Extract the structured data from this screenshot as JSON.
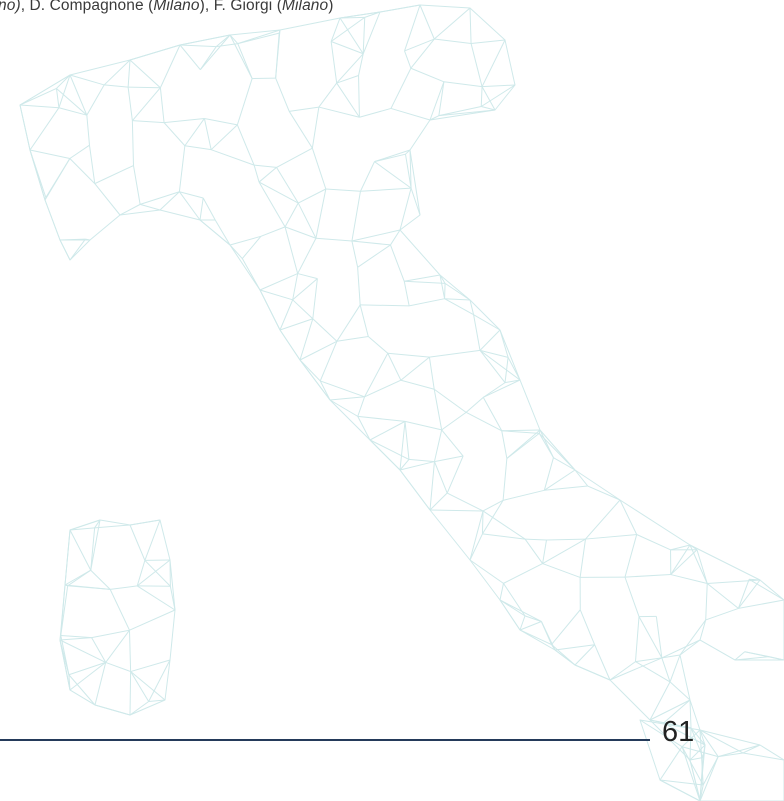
{
  "header": {
    "authors_line": [
      {
        "text": "no)",
        "italic": true
      },
      {
        "text": ", D. Compagnone (",
        "italic": false
      },
      {
        "text": "Milano",
        "italic": true
      },
      {
        "text": "), F. Giorgi (",
        "italic": false
      },
      {
        "text": "Milano",
        "italic": true
      },
      {
        "text": ")",
        "italic": false
      }
    ]
  },
  "footer": {
    "page_number": "61"
  },
  "colors": {
    "map_stroke": "#cfe9ea",
    "rule": "#243a5a",
    "text": "#3a3a3a"
  }
}
